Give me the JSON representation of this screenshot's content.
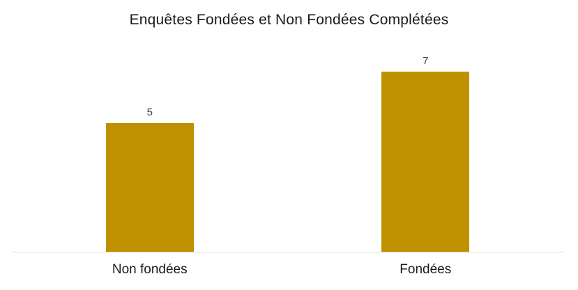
{
  "chart_data": {
    "type": "bar",
    "title": "Enquêtes Fondées et Non Fondées Complétées",
    "categories": [
      "Non fondées",
      "Fondées"
    ],
    "values": [
      5,
      7
    ],
    "xlabel": "",
    "ylabel": "",
    "ylim": [
      0,
      8
    ],
    "grid": false,
    "legend": false,
    "y_axis_visible": false,
    "data_labels_visible": true
  },
  "colors": {
    "bar": "#BF9000",
    "axis_line": "#D9D9D9",
    "data_label": "#404040",
    "text": "#1A1A1A",
    "background": "#FFFFFF"
  }
}
